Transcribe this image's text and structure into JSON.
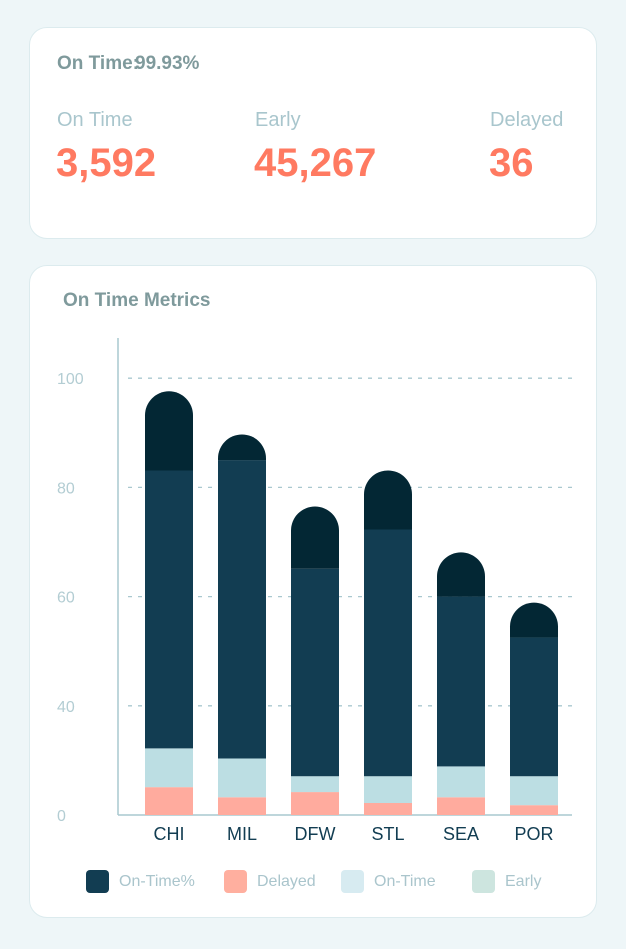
{
  "summary": {
    "on_time_label": "On Time:",
    "on_time_pct": "99.93%",
    "stats": [
      {
        "label": "On Time",
        "value": "3,592"
      },
      {
        "label": "Early",
        "value": "45,267"
      },
      {
        "label": "Delayed",
        "value": "36"
      }
    ]
  },
  "chart_title": "On Time Metrics",
  "chart_data": {
    "type": "bar",
    "stacked": true,
    "title": "On Time Metrics",
    "categories": [
      "CHI",
      "MIL",
      "DFW",
      "STL",
      "SEA",
      "POR"
    ],
    "yticks": [
      0,
      40,
      60,
      80,
      100
    ],
    "ylim": [
      0,
      100
    ],
    "grid": true,
    "legend_placement": "bottom",
    "series": [
      {
        "name": "Delayed",
        "color": "#ffab9e",
        "values": [
          10.2,
          6.5,
          8.4,
          4.4,
          6.5,
          3.6
        ]
      },
      {
        "name": "On-Time",
        "color": "#bcdee3",
        "values": [
          14.2,
          14.2,
          5.8,
          9.8,
          11.3,
          10.6
        ]
      },
      {
        "name": "On-Time%",
        "color": "#123d52",
        "values": [
          58.7,
          64.3,
          50.9,
          58.1,
          42.2,
          38.3
        ]
      },
      {
        "color": "#032734",
        "values": [
          14.5,
          4.7,
          11.4,
          10.8,
          8.1,
          6.4
        ]
      }
    ],
    "legend": [
      {
        "label": "On-Time%",
        "color": "#123d52"
      },
      {
        "label": "Delayed",
        "color": "#ffaf9f"
      },
      {
        "label": "On-Time",
        "color": "#d7ebf1"
      },
      {
        "label": "Early",
        "color": "#cde5df"
      }
    ]
  }
}
